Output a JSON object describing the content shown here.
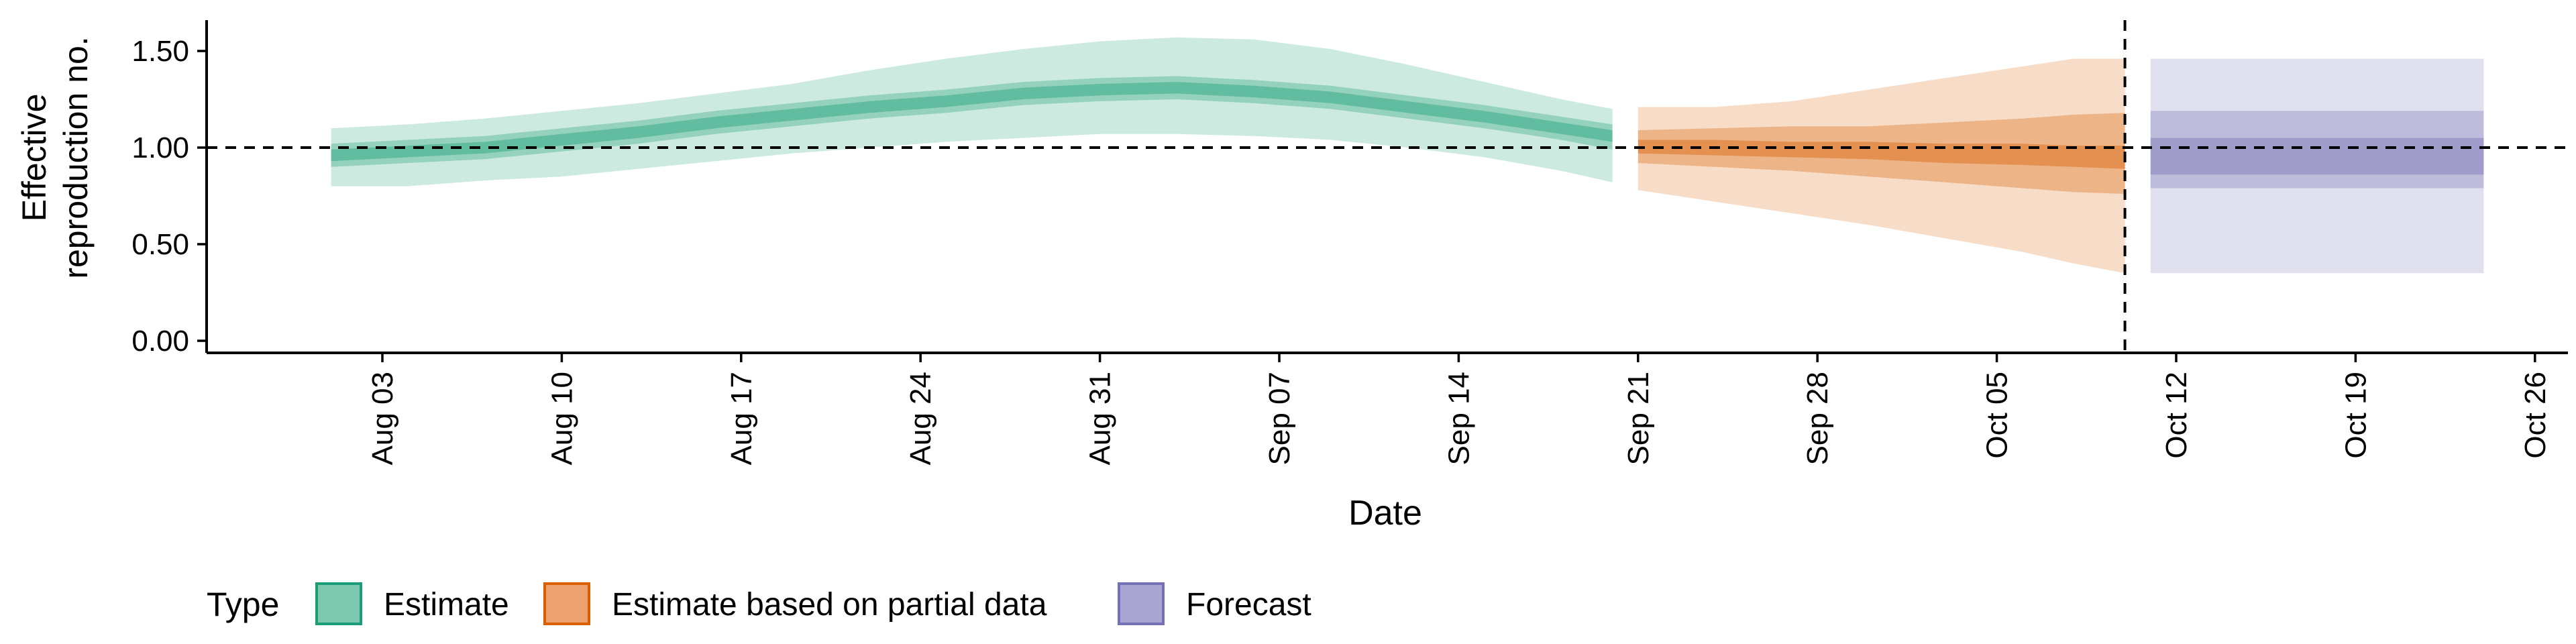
{
  "chart_data": {
    "type": "area",
    "xlabel": "Date",
    "ylabel": [
      "Effective",
      "reproduction no."
    ],
    "ylim": [
      0,
      1.65
    ],
    "y_ticks": [
      0.0,
      0.5,
      1.0,
      1.5
    ],
    "y_tick_labels": [
      "0.00",
      "0.50",
      "1.00",
      "1.50"
    ],
    "x_range": [
      "2020-07-29",
      "2020-10-28"
    ],
    "x_ticks": [
      "2020-08-03",
      "2020-08-10",
      "2020-08-17",
      "2020-08-24",
      "2020-08-31",
      "2020-09-07",
      "2020-09-14",
      "2020-09-21",
      "2020-09-28",
      "2020-10-05",
      "2020-10-12",
      "2020-10-19",
      "2020-10-26"
    ],
    "x_tick_labels": [
      "Aug 03",
      "Aug 10",
      "Aug 17",
      "Aug 24",
      "Aug 31",
      "Sep 07",
      "Sep 14",
      "Sep 21",
      "Sep 28",
      "Oct 05",
      "Oct 12",
      "Oct 19",
      "Oct 26"
    ],
    "reference_line_y": 1.0,
    "vertical_line_date": "2020-10-10",
    "grid": false,
    "legend": {
      "title": "Type",
      "position": "bottom-left",
      "entries": [
        {
          "label": "Estimate",
          "fill": "#7fc8b0",
          "border": "#1b9e77"
        },
        {
          "label": "Estimate based on partial data",
          "fill": "#eba26e",
          "border": "#d95f02"
        },
        {
          "label": "Forecast",
          "fill": "#aaa6d2",
          "border": "#7570b3"
        }
      ]
    },
    "series": [
      {
        "name": "Estimate",
        "color": "#1b9e77",
        "points": [
          {
            "x": "2020-08-01",
            "lo90": 0.8,
            "lo50": 0.9,
            "lo20": 0.93,
            "median": 0.96,
            "hi20": 0.99,
            "hi50": 1.02,
            "hi90": 1.1
          },
          {
            "x": "2020-08-04",
            "lo90": 0.8,
            "lo50": 0.92,
            "lo20": 0.95,
            "median": 0.98,
            "hi20": 1.01,
            "hi50": 1.04,
            "hi90": 1.12
          },
          {
            "x": "2020-08-07",
            "lo90": 0.83,
            "lo50": 0.94,
            "lo20": 0.97,
            "median": 1.0,
            "hi20": 1.03,
            "hi50": 1.06,
            "hi90": 1.15
          },
          {
            "x": "2020-08-10",
            "lo90": 0.85,
            "lo50": 0.98,
            "lo20": 1.01,
            "median": 1.04,
            "hi20": 1.07,
            "hi50": 1.1,
            "hi90": 1.19
          },
          {
            "x": "2020-08-13",
            "lo90": 0.89,
            "lo50": 1.02,
            "lo20": 1.05,
            "median": 1.08,
            "hi20": 1.11,
            "hi50": 1.14,
            "hi90": 1.23
          },
          {
            "x": "2020-08-16",
            "lo90": 0.93,
            "lo50": 1.07,
            "lo20": 1.1,
            "median": 1.13,
            "hi20": 1.16,
            "hi50": 1.19,
            "hi90": 1.28
          },
          {
            "x": "2020-08-19",
            "lo90": 0.97,
            "lo50": 1.11,
            "lo20": 1.14,
            "median": 1.17,
            "hi20": 1.2,
            "hi50": 1.23,
            "hi90": 1.33
          },
          {
            "x": "2020-08-22",
            "lo90": 1.0,
            "lo50": 1.15,
            "lo20": 1.18,
            "median": 1.21,
            "hi20": 1.24,
            "hi50": 1.27,
            "hi90": 1.4
          },
          {
            "x": "2020-08-25",
            "lo90": 1.03,
            "lo50": 1.18,
            "lo20": 1.21,
            "median": 1.24,
            "hi20": 1.27,
            "hi50": 1.3,
            "hi90": 1.46
          },
          {
            "x": "2020-08-28",
            "lo90": 1.05,
            "lo50": 1.22,
            "lo20": 1.25,
            "median": 1.28,
            "hi20": 1.31,
            "hi50": 1.34,
            "hi90": 1.51
          },
          {
            "x": "2020-08-31",
            "lo90": 1.07,
            "lo50": 1.24,
            "lo20": 1.27,
            "median": 1.3,
            "hi20": 1.33,
            "hi50": 1.36,
            "hi90": 1.55
          },
          {
            "x": "2020-09-03",
            "lo90": 1.07,
            "lo50": 1.25,
            "lo20": 1.28,
            "median": 1.31,
            "hi20": 1.34,
            "hi50": 1.37,
            "hi90": 1.57
          },
          {
            "x": "2020-09-06",
            "lo90": 1.06,
            "lo50": 1.23,
            "lo20": 1.26,
            "median": 1.29,
            "hi20": 1.32,
            "hi50": 1.35,
            "hi90": 1.56
          },
          {
            "x": "2020-09-09",
            "lo90": 1.04,
            "lo50": 1.2,
            "lo20": 1.23,
            "median": 1.26,
            "hi20": 1.29,
            "hi50": 1.32,
            "hi90": 1.51
          },
          {
            "x": "2020-09-12",
            "lo90": 1.0,
            "lo50": 1.15,
            "lo20": 1.18,
            "median": 1.21,
            "hi20": 1.24,
            "hi50": 1.27,
            "hi90": 1.43
          },
          {
            "x": "2020-09-15",
            "lo90": 0.95,
            "lo50": 1.1,
            "lo20": 1.13,
            "median": 1.16,
            "hi20": 1.19,
            "hi50": 1.22,
            "hi90": 1.34
          },
          {
            "x": "2020-09-18",
            "lo90": 0.88,
            "lo50": 1.04,
            "lo20": 1.07,
            "median": 1.1,
            "hi20": 1.13,
            "hi50": 1.16,
            "hi90": 1.25
          },
          {
            "x": "2020-09-20",
            "lo90": 0.82,
            "lo50": 0.99,
            "lo20": 1.03,
            "median": 1.06,
            "hi20": 1.09,
            "hi50": 1.12,
            "hi90": 1.2
          }
        ]
      },
      {
        "name": "Estimate based on partial data",
        "color": "#d95f02",
        "points": [
          {
            "x": "2020-09-21",
            "lo90": 0.78,
            "lo50": 0.92,
            "lo20": 0.97,
            "median": 1.01,
            "hi20": 1.04,
            "hi50": 1.09,
            "hi90": 1.21
          },
          {
            "x": "2020-09-24",
            "lo90": 0.72,
            "lo50": 0.9,
            "lo20": 0.96,
            "median": 1.0,
            "hi20": 1.04,
            "hi50": 1.1,
            "hi90": 1.21
          },
          {
            "x": "2020-09-27",
            "lo90": 0.66,
            "lo50": 0.88,
            "lo20": 0.95,
            "median": 0.99,
            "hi20": 1.03,
            "hi50": 1.11,
            "hi90": 1.24
          },
          {
            "x": "2020-09-30",
            "lo90": 0.6,
            "lo50": 0.85,
            "lo20": 0.94,
            "median": 0.98,
            "hi20": 1.03,
            "hi50": 1.11,
            "hi90": 1.3
          },
          {
            "x": "2020-10-03",
            "lo90": 0.53,
            "lo50": 0.82,
            "lo20": 0.92,
            "median": 0.97,
            "hi20": 1.02,
            "hi50": 1.13,
            "hi90": 1.36
          },
          {
            "x": "2020-10-06",
            "lo90": 0.46,
            "lo50": 0.79,
            "lo20": 0.91,
            "median": 0.96,
            "hi20": 1.02,
            "hi50": 1.15,
            "hi90": 1.42
          },
          {
            "x": "2020-10-08",
            "lo90": 0.4,
            "lo50": 0.77,
            "lo20": 0.9,
            "median": 0.95,
            "hi20": 1.01,
            "hi50": 1.17,
            "hi90": 1.46
          },
          {
            "x": "2020-10-10",
            "lo90": 0.35,
            "lo50": 0.76,
            "lo20": 0.89,
            "median": 0.95,
            "hi20": 1.01,
            "hi50": 1.18,
            "hi90": 1.46
          }
        ]
      },
      {
        "name": "Forecast",
        "color": "#7570b3",
        "points": [
          {
            "x": "2020-10-11",
            "lo90": 0.35,
            "lo50": 0.79,
            "lo20": 0.86,
            "median": 0.95,
            "hi20": 1.05,
            "hi50": 1.19,
            "hi90": 1.46
          },
          {
            "x": "2020-10-24",
            "lo90": 0.35,
            "lo50": 0.79,
            "lo20": 0.86,
            "median": 0.95,
            "hi20": 1.05,
            "hi50": 1.19,
            "hi90": 1.46
          }
        ]
      }
    ]
  }
}
